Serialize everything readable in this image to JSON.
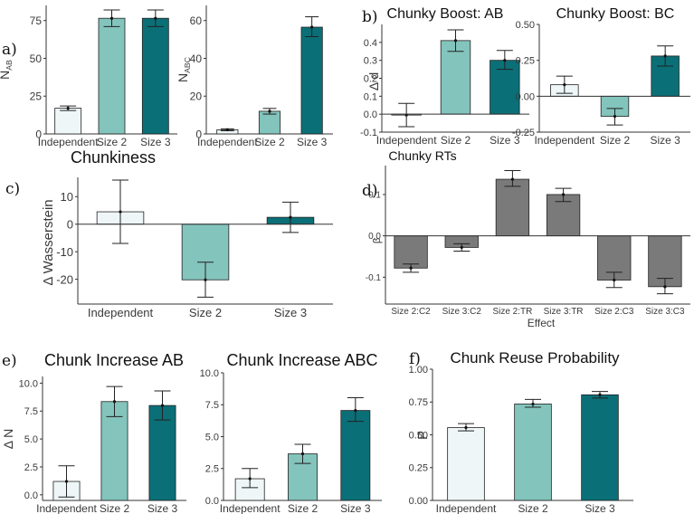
{
  "figure": {
    "colors": {
      "independent": "#eef6f8",
      "size2": "#83c4bc",
      "size3": "#0b6f77",
      "rt": "#7a7a7a",
      "axis": "#333333"
    }
  },
  "chart_data": [
    {
      "id": "a1",
      "letter": "a)",
      "type": "bar",
      "title": "",
      "ylabel": "N",
      "ylabel_sub": "AB",
      "xlabel": "",
      "categories": [
        "Independent",
        "Size 2",
        "Size 3"
      ],
      "colors": [
        "independent",
        "size2",
        "size3"
      ],
      "values": [
        17,
        76.5,
        76.5
      ],
      "err_lo": [
        15.5,
        71,
        71
      ],
      "err_hi": [
        18.5,
        82,
        82
      ],
      "ylim": [
        0,
        85
      ],
      "yticks": [
        0,
        25,
        50,
        75
      ],
      "ytick_labels": [
        "0",
        "25",
        "50",
        "75"
      ],
      "zero_line": false
    },
    {
      "id": "a2",
      "letter": "",
      "type": "bar",
      "title": "",
      "ylabel": "N",
      "ylabel_sub": "ABC",
      "xlabel": "",
      "categories": [
        "Independent",
        "Size 2",
        "Size 3"
      ],
      "colors": [
        "independent",
        "size2",
        "size3"
      ],
      "values": [
        2.2,
        12,
        56.5
      ],
      "err_lo": [
        1.7,
        10.5,
        51.5
      ],
      "err_hi": [
        2.7,
        13.5,
        62
      ],
      "ylim": [
        0,
        68
      ],
      "yticks": [
        0,
        20,
        40,
        60
      ],
      "ytick_labels": [
        "0",
        "20",
        "40",
        "60"
      ],
      "zero_line": false
    },
    {
      "id": "b1",
      "letter": "b)",
      "type": "bar",
      "title": "Chunky Boost: AB",
      "ylabel": "Δ d",
      "ylabel_sub": "",
      "xlabel": "",
      "categories": [
        "Independent",
        "Size 2",
        "Size 3"
      ],
      "colors": [
        "independent",
        "size2",
        "size3"
      ],
      "values": [
        -0.005,
        0.41,
        0.3
      ],
      "err_lo": [
        -0.07,
        0.35,
        0.25
      ],
      "err_hi": [
        0.06,
        0.47,
        0.355
      ],
      "ylim": [
        -0.1,
        0.5
      ],
      "yticks": [
        -0.1,
        0,
        0.1,
        0.2,
        0.3,
        0.4
      ],
      "ytick_labels": [
        "-0.1",
        "0.0",
        "0.1",
        "0.2",
        "0.3",
        "0.4"
      ],
      "zero_line": true
    },
    {
      "id": "b2",
      "letter": "",
      "type": "bar",
      "title": "Chunky Boost: BC",
      "ylabel": "",
      "ylabel_sub": "",
      "xlabel": "",
      "categories": [
        "Independent",
        "Size 2",
        "Size 3"
      ],
      "colors": [
        "independent",
        "size2",
        "size3"
      ],
      "values": [
        0.08,
        -0.14,
        0.28
      ],
      "err_lo": [
        0.02,
        -0.2,
        0.21
      ],
      "err_hi": [
        0.14,
        -0.085,
        0.35
      ],
      "ylim": [
        -0.25,
        0.5
      ],
      "yticks": [
        -0.25,
        0,
        0.25,
        0.5
      ],
      "ytick_labels": [
        "-0.25",
        "0.00",
        "0.25",
        "0.50"
      ],
      "zero_line": true
    },
    {
      "id": "c",
      "letter": "c)",
      "type": "bar",
      "title": "Chunkiness",
      "ylabel": "Δ Wasserstein",
      "ylabel_sub": "",
      "xlabel": "",
      "categories": [
        "Independent",
        "Size 2",
        "Size 3"
      ],
      "colors": [
        "independent",
        "size2",
        "size3"
      ],
      "values": [
        4.5,
        -20.2,
        2.5
      ],
      "err_lo": [
        -7,
        -26.5,
        -3
      ],
      "err_hi": [
        16,
        -13.8,
        8
      ],
      "ylim": [
        -29,
        17
      ],
      "yticks": [
        -20,
        -10,
        0,
        10
      ],
      "ytick_labels": [
        "-20",
        "-10",
        "0",
        "10"
      ],
      "zero_line": true
    },
    {
      "id": "d",
      "letter": "d)",
      "type": "bar",
      "title": "Chunky RTs",
      "ylabel": "β",
      "ylabel_sub": "",
      "xlabel": "Effect",
      "categories": [
        "Size 2:C2",
        "Size 3:C2",
        "Size 2:TR",
        "Size 3:TR",
        "Size 2:C3",
        "Size 3:C3"
      ],
      "colors": [
        "rt",
        "rt",
        "rt",
        "rt",
        "rt",
        "rt"
      ],
      "values": [
        -0.078,
        -0.028,
        0.137,
        0.1,
        -0.107,
        -0.123
      ],
      "err_lo": [
        -0.088,
        -0.037,
        0.12,
        0.083,
        -0.125,
        -0.14
      ],
      "err_hi": [
        -0.068,
        -0.019,
        0.158,
        0.115,
        -0.088,
        -0.103
      ],
      "ylim": [
        -0.165,
        0.17
      ],
      "yticks": [
        -0.1,
        0,
        0.1
      ],
      "ytick_labels": [
        "-0.1",
        "0.0",
        "0.1"
      ],
      "zero_line": true
    },
    {
      "id": "e1",
      "letter": "e)",
      "type": "bar",
      "title": "Chunk Increase AB",
      "ylabel": "Δ N",
      "ylabel_sub": "",
      "xlabel": "",
      "categories": [
        "Independent",
        "Size 2",
        "Size 3"
      ],
      "colors": [
        "independent",
        "size2",
        "size3"
      ],
      "values": [
        1.2,
        8.35,
        8.0
      ],
      "err_lo": [
        -0.2,
        7.0,
        6.7
      ],
      "err_hi": [
        2.6,
        9.7,
        9.3
      ],
      "ylim": [
        -0.5,
        10.6
      ],
      "yticks": [
        0,
        2.5,
        5,
        7.5,
        10
      ],
      "ytick_labels": [
        "0.0",
        "2.5",
        "5.0",
        "7.5",
        "10.0"
      ],
      "zero_line": false
    },
    {
      "id": "e2",
      "letter": "",
      "type": "bar",
      "title": "Chunk Increase ABC",
      "ylabel": "",
      "ylabel_sub": "",
      "xlabel": "",
      "categories": [
        "Independent",
        "Size 2",
        "Size 3"
      ],
      "colors": [
        "independent",
        "size2",
        "size3"
      ],
      "values": [
        1.7,
        3.65,
        7.05
      ],
      "err_lo": [
        1.0,
        2.9,
        6.2
      ],
      "err_hi": [
        2.5,
        4.4,
        8.05
      ],
      "ylim": [
        0,
        10
      ],
      "yticks": [
        0,
        2.5,
        5,
        7.5,
        10
      ],
      "ytick_labels": [
        "0.0",
        "2.5",
        "5.0",
        "7.5",
        "10.0"
      ],
      "zero_line": false
    },
    {
      "id": "f",
      "letter": "f)",
      "type": "bar",
      "title": "Chunk Reuse Probability",
      "ylabel": "P",
      "ylabel_sub": "",
      "xlabel": "",
      "categories": [
        "Independent",
        "Size 2",
        "Size 3"
      ],
      "colors": [
        "independent",
        "size2",
        "size3"
      ],
      "values": [
        0.555,
        0.735,
        0.805
      ],
      "err_lo": [
        0.53,
        0.71,
        0.78
      ],
      "err_hi": [
        0.585,
        0.77,
        0.83
      ],
      "ylim": [
        0,
        1
      ],
      "yticks": [
        0,
        0.25,
        0.5,
        0.75,
        1
      ],
      "ytick_labels": [
        "0.00",
        "0.25",
        "0.50",
        "0.75",
        "1.00"
      ],
      "zero_line": false
    }
  ]
}
